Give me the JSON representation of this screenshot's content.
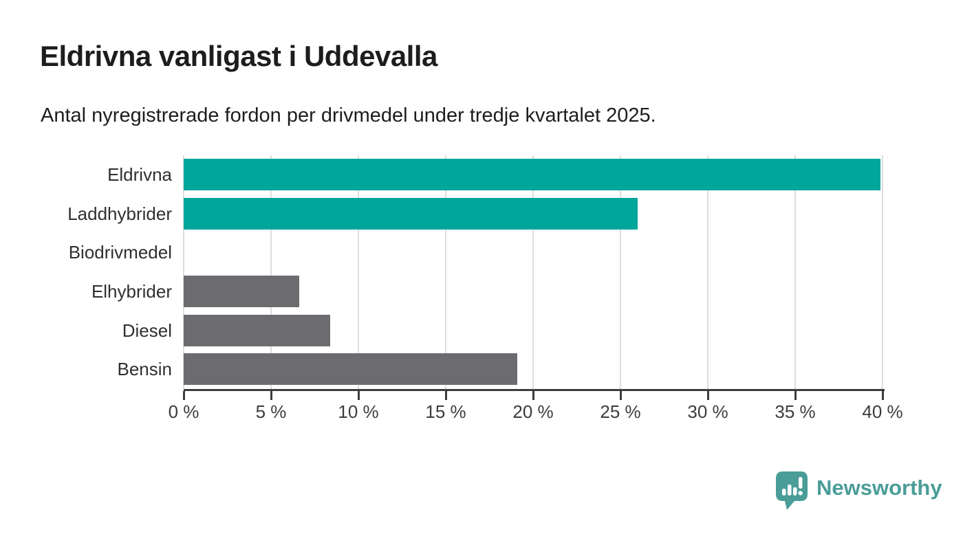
{
  "header": {
    "title": "Eldrivna vanligast i Uddevalla",
    "subtitle": "Antal nyregistrerade fordon per drivmedel under tredje kvartalet 2025."
  },
  "chart_data": {
    "type": "bar",
    "orientation": "horizontal",
    "title": "Eldrivna vanligast i Uddevalla",
    "subtitle": "Antal nyregistrerade fordon per drivmedel under tredje kvartalet 2025.",
    "categories": [
      "Eldrivna",
      "Laddhybrider",
      "Biodrivmedel",
      "Elhybrider",
      "Diesel",
      "Bensin"
    ],
    "values": [
      39.9,
      26.0,
      0,
      6.6,
      8.4,
      19.1
    ],
    "unit": "%",
    "bar_colors": [
      "#00a59c",
      "#00a59c",
      "#6c6c70",
      "#6c6c70",
      "#6c6c70",
      "#6c6c70"
    ],
    "xlim": [
      0,
      40
    ],
    "x_ticks": [
      0,
      5,
      10,
      15,
      20,
      25,
      30,
      35,
      40
    ],
    "x_tick_labels": [
      "0 %",
      "5 %",
      "10 %",
      "15 %",
      "20 %",
      "25 %",
      "30 %",
      "35 %",
      "40 %"
    ],
    "grid": true,
    "legend": false,
    "value_labels": false
  },
  "branding": {
    "logo_text": "Newsworthy",
    "logo_color": "#4a9d98",
    "logo_icon": "pin-bar-chart-icon"
  },
  "style": {
    "teal": "#00a59c",
    "gray": "#6c6c70",
    "grid_color": "#dedede",
    "axis_color": "#3c3c3c",
    "text_color": "#1d1d1b"
  }
}
